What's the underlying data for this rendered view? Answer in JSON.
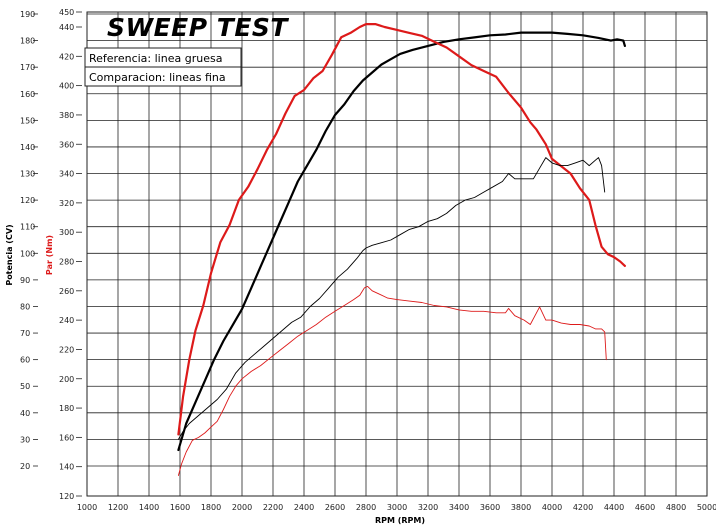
{
  "chart_data": {
    "type": "line",
    "title": "SWEEP TEST",
    "xlabel": "RPM (RPM)",
    "ylabel_left": "Potencia (CV)",
    "ylabel_inner": "Par (Nm)",
    "xlim": [
      1000,
      5000
    ],
    "ylim_power": [
      10,
      190
    ],
    "ylim_torque": [
      120,
      450
    ],
    "x_ticks": [
      "1000",
      "1200",
      "1400",
      "1600",
      "1800",
      "2000",
      "2200",
      "2400",
      "2600",
      "2800",
      "3000",
      "3200",
      "3400",
      "3600",
      "3800",
      "4000",
      "4200",
      "4400",
      "4600",
      "4800",
      "5000"
    ],
    "y_left_ticks": [
      "190",
      "180",
      "170",
      "160",
      "150",
      "140",
      "130",
      "120",
      "110",
      "100",
      "90",
      "80",
      "70",
      "60",
      "50",
      "40",
      "30",
      "20"
    ],
    "y_inner_ticks": [
      "450",
      "440",
      "420",
      "400",
      "380",
      "360",
      "340",
      "320",
      "300",
      "280",
      "260",
      "240",
      "220",
      "200",
      "180",
      "160",
      "140",
      "120"
    ],
    "legend": [
      "Referencia: linea gruesa",
      "Comparacion: lineas fina"
    ],
    "colors": {
      "power": "#000000",
      "torque": "#dd1a1a",
      "grid": "#222222"
    },
    "series": [
      {
        "name": "Potencia referencia",
        "axis": "power",
        "color": "#000000",
        "width": 2.2,
        "x": [
          1590,
          1640,
          1700,
          1760,
          1820,
          1880,
          1940,
          2000,
          2060,
          2120,
          2180,
          2240,
          2300,
          2360,
          2420,
          2480,
          2540,
          2600,
          2660,
          2720,
          2780,
          2840,
          2900,
          2960,
          3020,
          3100,
          3200,
          3300,
          3400,
          3500,
          3600,
          3700,
          3800,
          3900,
          4000,
          4100,
          4200,
          4300,
          4380,
          4420,
          4460,
          4470
        ],
        "y": [
          26,
          36,
          44,
          52,
          60,
          67,
          73,
          79,
          87,
          95,
          103,
          111,
          119,
          127,
          133,
          139,
          146,
          152,
          156,
          161,
          165,
          168,
          171,
          173,
          175,
          176.5,
          178,
          179.5,
          180.5,
          181.2,
          182,
          182.3,
          183,
          183,
          183,
          182.5,
          182,
          181,
          180,
          180.5,
          180,
          178
        ]
      },
      {
        "name": "Par referencia",
        "axis": "torque",
        "color": "#dd1a1a",
        "width": 2.2,
        "x": [
          1590,
          1620,
          1660,
          1700,
          1750,
          1800,
          1860,
          1920,
          1980,
          2040,
          2100,
          2160,
          2220,
          2280,
          2340,
          2400,
          2460,
          2520,
          2580,
          2640,
          2700,
          2760,
          2800,
          2860,
          2920,
          3000,
          3080,
          3160,
          3240,
          3320,
          3400,
          3480,
          3560,
          3640,
          3720,
          3800,
          3860,
          3900,
          3960,
          4000,
          4060,
          4120,
          4180,
          4240,
          4280,
          4320,
          4360,
          4400,
          4440,
          4470
        ],
        "y": [
          162,
          188,
          213,
          233,
          250,
          272,
          293,
          305,
          322,
          331,
          343,
          356,
          367,
          381,
          393,
          397,
          405,
          410,
          421,
          433,
          436,
          440,
          442,
          442,
          440,
          438,
          436,
          434,
          430,
          426,
          420,
          414,
          410,
          406,
          395,
          385,
          375,
          370,
          360,
          350,
          345,
          340,
          330,
          322,
          305,
          290,
          285,
          283,
          280,
          277
        ]
      },
      {
        "name": "Potencia comparacion",
        "axis": "power",
        "color": "#000000",
        "width": 0.9,
        "x": [
          1590,
          1620,
          1660,
          1720,
          1780,
          1840,
          1900,
          1960,
          2020,
          2080,
          2140,
          2200,
          2260,
          2320,
          2380,
          2440,
          2500,
          2560,
          2620,
          2680,
          2740,
          2780,
          2800,
          2840,
          2900,
          2960,
          3020,
          3080,
          3140,
          3200,
          3260,
          3320,
          3380,
          3440,
          3500,
          3560,
          3620,
          3680,
          3720,
          3760,
          3820,
          3880,
          3920,
          3960,
          4000,
          4050,
          4100,
          4150,
          4200,
          4240,
          4280,
          4300,
          4320,
          4340
        ],
        "y": [
          30,
          33,
          36,
          39,
          42,
          45,
          49,
          55,
          59,
          62,
          65,
          68,
          71,
          74,
          76,
          80,
          83,
          87,
          91,
          94,
          98,
          101,
          102,
          103,
          104,
          105,
          107,
          109,
          110,
          112,
          113,
          115,
          118,
          120,
          121,
          123,
          125,
          127,
          130,
          128,
          128,
          128,
          132,
          136,
          134,
          133,
          133,
          134,
          135,
          133,
          135,
          136,
          133,
          123
        ]
      },
      {
        "name": "Par comparacion",
        "axis": "torque",
        "color": "#dd1a1a",
        "width": 0.9,
        "x": [
          1590,
          1610,
          1640,
          1680,
          1720,
          1760,
          1800,
          1840,
          1880,
          1920,
          1960,
          2000,
          2060,
          2120,
          2180,
          2240,
          2300,
          2360,
          2420,
          2480,
          2540,
          2600,
          2660,
          2720,
          2760,
          2790,
          2810,
          2840,
          2880,
          2940,
          3000,
          3080,
          3160,
          3240,
          3320,
          3400,
          3480,
          3560,
          3640,
          3700,
          3720,
          3760,
          3820,
          3860,
          3900,
          3920,
          3960,
          4000,
          4060,
          4120,
          4180,
          4240,
          4280,
          4320,
          4340,
          4350
        ],
        "y": [
          134,
          142,
          150,
          158,
          160,
          163,
          167,
          171,
          179,
          188,
          195,
          200,
          205,
          209,
          214,
          219,
          224,
          229,
          233,
          237,
          242,
          246,
          250,
          254,
          257,
          262,
          263,
          260,
          258,
          255,
          254,
          253,
          252,
          250,
          249,
          247,
          246,
          246,
          245,
          245,
          248,
          243,
          240,
          237,
          245,
          249,
          240,
          240,
          238,
          237,
          237,
          236,
          234,
          234,
          232,
          213
        ]
      }
    ]
  }
}
